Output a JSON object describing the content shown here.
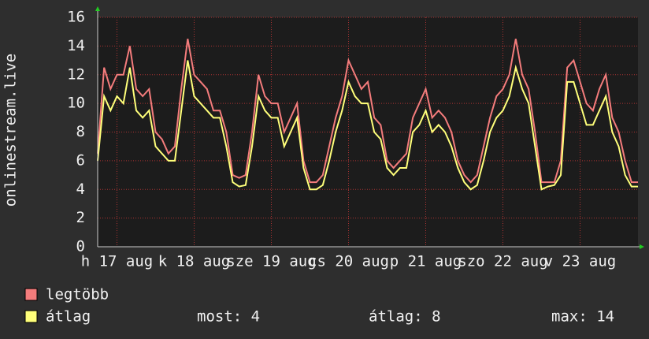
{
  "chart_data": {
    "type": "line",
    "y_label": "onlinestream.live",
    "x": [
      0,
      2,
      4,
      6,
      8,
      10,
      12,
      14,
      16,
      18,
      20,
      22,
      24,
      26,
      28,
      30,
      32,
      34,
      36,
      38,
      40,
      42,
      44,
      46,
      48,
      50,
      52,
      54,
      56,
      58,
      60,
      62,
      64,
      66,
      68,
      70,
      72,
      74,
      76,
      78,
      80,
      82,
      84,
      86,
      88,
      90,
      92,
      94,
      96,
      98,
      100,
      102,
      104,
      106,
      108,
      110,
      112,
      114,
      116,
      118,
      120,
      122,
      124,
      126,
      128,
      130,
      132,
      134,
      136,
      138,
      140,
      142,
      144,
      146,
      148,
      150,
      152,
      154,
      156,
      158,
      160,
      162,
      164,
      166,
      168
    ],
    "xlim": [
      0,
      168
    ],
    "xticks": [
      {
        "value": 6,
        "label": "h 17 aug"
      },
      {
        "value": 30,
        "label": "k 18 aug"
      },
      {
        "value": 54,
        "label": "sze 19 aug"
      },
      {
        "value": 78,
        "label": "cs 20 aug"
      },
      {
        "value": 102,
        "label": "p 21 aug"
      },
      {
        "value": 126,
        "label": "szo 22 aug"
      },
      {
        "value": 150,
        "label": "v 23 aug"
      }
    ],
    "ylim": [
      0,
      16
    ],
    "yticks": [
      0,
      2,
      4,
      6,
      8,
      10,
      12,
      14,
      16
    ],
    "grid": true,
    "series": [
      {
        "name": "legtöbb",
        "color": "#f47c7c",
        "values": [
          6.5,
          12.5,
          11,
          12,
          12,
          14,
          11,
          10.5,
          11,
          8,
          7.5,
          6.5,
          7,
          11,
          14.5,
          12,
          11.5,
          11,
          9.5,
          9.5,
          8,
          5,
          4.8,
          5,
          8,
          12,
          10.5,
          10,
          10,
          8,
          9,
          10,
          6,
          4.5,
          4.5,
          5,
          7,
          9,
          10.5,
          13,
          12,
          11,
          11.5,
          9,
          8.5,
          6,
          5.5,
          6,
          6.5,
          9,
          10,
          11,
          9,
          9.5,
          9,
          8,
          6,
          5,
          4.5,
          5,
          7,
          9,
          10.5,
          11,
          12,
          14.5,
          12,
          11,
          8,
          4.5,
          4.5,
          4.5,
          6,
          12.5,
          13,
          11.5,
          10,
          9.5,
          11,
          12,
          9,
          8,
          6,
          4.5,
          4.5
        ]
      },
      {
        "name": "átlag",
        "color": "#ffff7a",
        "values": [
          6,
          10.5,
          9.5,
          10.5,
          10,
          12.5,
          9.5,
          9,
          9.5,
          7,
          6.5,
          6,
          6,
          9.5,
          13,
          10.5,
          10,
          9.5,
          9,
          9,
          7,
          4.5,
          4.2,
          4.3,
          7,
          10.5,
          9.5,
          9,
          9,
          7,
          8,
          9,
          5.5,
          4,
          4,
          4.3,
          6,
          8,
          9.5,
          11.5,
          10.5,
          10,
          10,
          8,
          7.5,
          5.5,
          5,
          5.5,
          5.5,
          8,
          8.5,
          9.5,
          8,
          8.5,
          8,
          7,
          5.5,
          4.5,
          4,
          4.3,
          6,
          8,
          9,
          9.5,
          10.5,
          12.5,
          11,
          10,
          7,
          4,
          4.2,
          4.3,
          5,
          11.5,
          11.5,
          10,
          8.5,
          8.5,
          9.5,
          10.5,
          8,
          7,
          5,
          4.2,
          4.2
        ]
      }
    ],
    "stats": [
      "most: 4",
      "átlag: 8",
      "max: 14"
    ]
  }
}
